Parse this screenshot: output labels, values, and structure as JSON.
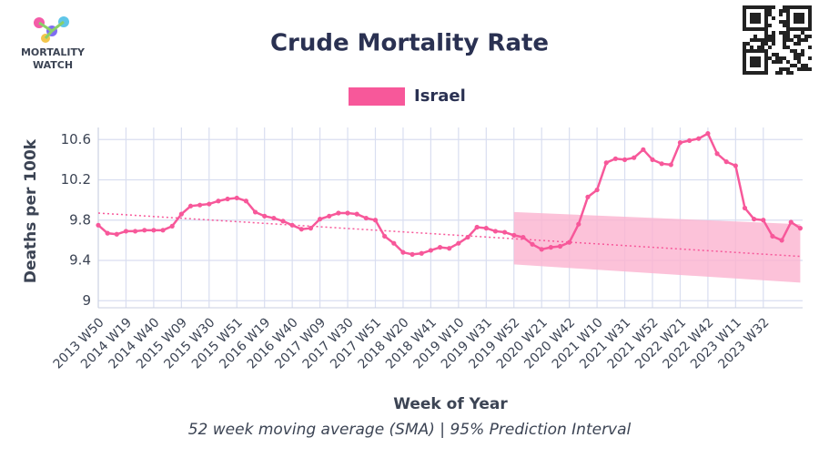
{
  "chart_data": {
    "type": "line",
    "title": "Crude Mortality Rate",
    "logo_text": [
      "MORTALITY",
      "WATCH"
    ],
    "y_label": "Deaths per 100k",
    "x_label": "Week of Year",
    "footnote": "52 week moving average (SMA) | 95% Prediction Interval",
    "categories": [
      "2013 W50",
      null,
      null,
      "2014 W19",
      null,
      null,
      "2014 W40",
      null,
      null,
      "2015 W09",
      null,
      null,
      "2015 W30",
      null,
      null,
      "2015 W51",
      null,
      null,
      "2016 W19",
      null,
      null,
      "2016 W40",
      null,
      null,
      "2017 W09",
      null,
      null,
      "2017 W30",
      null,
      null,
      "2017 W51",
      null,
      null,
      "2018 W20",
      null,
      null,
      "2018 W41",
      null,
      null,
      "2019 W10",
      null,
      null,
      "2019 W31",
      null,
      null,
      "2019 W52",
      null,
      null,
      "2020 W21",
      null,
      null,
      "2020 W42",
      null,
      null,
      "2021 W10",
      null,
      null,
      "2021 W31",
      null,
      null,
      "2021 W52",
      null,
      null,
      "2022 W21",
      null,
      null,
      "2022 W42",
      null,
      null,
      "2023 W11",
      null,
      null,
      "2023 W32",
      null,
      null,
      null,
      null
    ],
    "series": [
      {
        "name": "Israel",
        "color": "#f7589a",
        "values": [
          9.75,
          9.67,
          9.66,
          9.69,
          9.69,
          9.7,
          9.7,
          9.7,
          9.74,
          9.86,
          9.94,
          9.95,
          9.96,
          9.99,
          10.01,
          10.02,
          9.99,
          9.88,
          9.84,
          9.82,
          9.79,
          9.75,
          9.71,
          9.72,
          9.81,
          9.84,
          9.87,
          9.87,
          9.86,
          9.82,
          9.8,
          9.64,
          9.57,
          9.48,
          9.46,
          9.47,
          9.5,
          9.53,
          9.52,
          9.57,
          9.63,
          9.73,
          9.72,
          9.69,
          9.68,
          9.65,
          9.63,
          9.56,
          9.51,
          9.53,
          9.54,
          9.58,
          9.76,
          10.03,
          10.1,
          10.37,
          10.41,
          10.4,
          10.42,
          10.5,
          10.4,
          10.36,
          10.35,
          10.57,
          10.59,
          10.61,
          10.66,
          10.46,
          10.38,
          10.34,
          9.92,
          9.81,
          9.8,
          9.64,
          9.6,
          9.78,
          9.72
        ]
      }
    ],
    "trend": {
      "color": "#f7589a",
      "values": [
        9.87,
        9.44
      ]
    },
    "interval": {
      "color": "#fbb3d0",
      "from": "2019 W52",
      "upper": [
        9.88,
        9.76
      ],
      "lower": [
        9.36,
        9.18
      ]
    },
    "ylim": [
      8.93,
      10.72
    ],
    "yticks": [
      9,
      9.4,
      9.8,
      10.2,
      10.6
    ],
    "grid": true,
    "legend": "top"
  }
}
